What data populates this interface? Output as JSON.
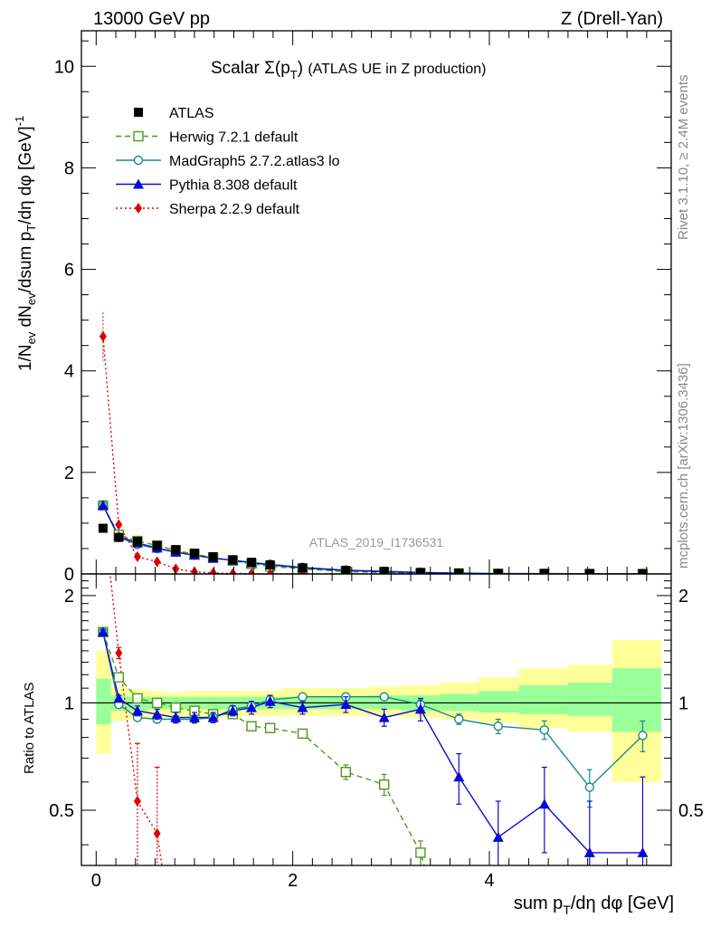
{
  "header": {
    "energy": "13000 GeV pp",
    "process": "Z (Drell-Yan)"
  },
  "side_text": {
    "rivet": "Rivet 3.1.10, ≥ 2.4M events",
    "mcplots": "mcplots.cern.ch [arXiv:1306.3436]"
  },
  "chart_data": [
    {
      "type": "line",
      "panel": "main",
      "title": "Scalar Σ(p_T) (ATLAS UE in Z production)",
      "watermark": "ATLAS_2019_I1736531",
      "ylabel": "1/N_ev dN_ev/dsum p_T/dη dφ [GeV]^-1",
      "xlabel": "sum p_T/dη dφ [GeV]",
      "xlim": [
        -0.15,
        5.85
      ],
      "ylim": [
        0,
        10.7
      ],
      "x_ticks": [
        "0",
        "2",
        "4"
      ],
      "y_ticks": [
        "0",
        "2",
        "4",
        "6",
        "8",
        "10"
      ],
      "legend_position": "top-left",
      "x": [
        0.07,
        0.23,
        0.42,
        0.62,
        0.81,
        1.0,
        1.19,
        1.39,
        1.58,
        1.77,
        2.1,
        2.54,
        2.93,
        3.3,
        3.69,
        4.09,
        4.56,
        5.02,
        5.56
      ],
      "series": [
        {
          "name": "ATLAS",
          "color": "#000000",
          "marker": "square",
          "values": [
            0.9,
            0.72,
            0.64,
            0.56,
            0.48,
            0.41,
            0.34,
            0.28,
            0.23,
            0.18,
            0.12,
            0.07,
            0.05,
            0.03,
            0.02,
            0.01,
            0.008,
            0.005,
            0.003
          ]
        },
        {
          "name": "Herwig 7.2.1 default",
          "color": "#4a9a1a",
          "marker": "open-square",
          "dash": "6,4",
          "values": [
            1.35,
            0.77,
            0.65,
            0.56,
            0.46,
            0.39,
            0.32,
            0.26,
            0.2,
            0.15,
            0.1,
            0.045,
            0.03,
            0.012,
            0.006,
            0.003,
            0.002,
            0.001,
            0.001
          ]
        },
        {
          "name": "MadGraph5 2.7.2.atlas3 lo",
          "color": "#1a8a8a",
          "marker": "open-circle",
          "dash": "",
          "values": [
            1.35,
            0.72,
            0.58,
            0.5,
            0.43,
            0.37,
            0.31,
            0.27,
            0.23,
            0.19,
            0.13,
            0.075,
            0.053,
            0.03,
            0.018,
            0.009,
            0.007,
            0.003,
            0.002
          ]
        },
        {
          "name": "Pythia 8.308 default",
          "color": "#0a0ad6",
          "marker": "triangle",
          "dash": "",
          "values": [
            1.35,
            0.74,
            0.61,
            0.51,
            0.43,
            0.37,
            0.31,
            0.27,
            0.22,
            0.18,
            0.12,
            0.07,
            0.045,
            0.029,
            0.012,
            0.004,
            0.004,
            0.002,
            0.001
          ]
        },
        {
          "name": "Sherpa 2.2.9 default",
          "color": "#e00000",
          "marker": "diamond",
          "dash": "2,3",
          "values": [
            4.68,
            0.97,
            0.34,
            0.24,
            0.1,
            0.04,
            0.02,
            0.01,
            0.005,
            0.003,
            0.002,
            0.001,
            0.001,
            0.001,
            0.0,
            0.0,
            0.0,
            0.0,
            0.0
          ]
        }
      ]
    },
    {
      "type": "line",
      "panel": "ratio",
      "ylabel": "Ratio to ATLAS",
      "xlabel": "sum p_T/dη dφ [GeV]",
      "xlim": [
        -0.15,
        5.85
      ],
      "ylim": [
        0.35,
        2.3
      ],
      "x_ticks": [
        "0",
        "2",
        "4"
      ],
      "y_ticks": [
        "0.5",
        "1",
        "2"
      ],
      "bands": {
        "x_edges": [
          0.0,
          0.15,
          0.32,
          0.52,
          0.72,
          0.9,
          1.1,
          1.3,
          1.48,
          1.68,
          1.88,
          2.32,
          2.75,
          3.1,
          3.5,
          3.89,
          4.3,
          4.8,
          5.25,
          5.75
        ],
        "yellow_lo": [
          0.72,
          0.89,
          0.9,
          0.91,
          0.91,
          0.91,
          0.91,
          0.91,
          0.92,
          0.92,
          0.92,
          0.92,
          0.92,
          0.91,
          0.9,
          0.88,
          0.85,
          0.83,
          0.6
        ],
        "yellow_hi": [
          1.4,
          1.11,
          1.09,
          1.08,
          1.07,
          1.08,
          1.08,
          1.08,
          1.08,
          1.08,
          1.1,
          1.1,
          1.11,
          1.12,
          1.14,
          1.18,
          1.25,
          1.28,
          1.5
        ],
        "green_lo": [
          0.87,
          0.95,
          0.95,
          0.96,
          0.96,
          0.96,
          0.96,
          0.96,
          0.96,
          0.96,
          0.96,
          0.96,
          0.96,
          0.95,
          0.95,
          0.94,
          0.93,
          0.92,
          0.83
        ],
        "green_hi": [
          1.17,
          1.05,
          1.04,
          1.04,
          1.04,
          1.04,
          1.04,
          1.04,
          1.04,
          1.04,
          1.04,
          1.04,
          1.05,
          1.05,
          1.06,
          1.08,
          1.12,
          1.14,
          1.25
        ]
      },
      "x": [
        0.07,
        0.23,
        0.42,
        0.62,
        0.81,
        1.0,
        1.19,
        1.39,
        1.58,
        1.77,
        2.1,
        2.54,
        2.93,
        3.3,
        3.69,
        4.09,
        4.56,
        5.02,
        5.56
      ],
      "series": [
        {
          "name": "Herwig 7.2.1 default",
          "color": "#4a9a1a",
          "marker": "open-square",
          "dash": "6,4",
          "values": [
            1.58,
            1.18,
            1.03,
            1.0,
            0.97,
            0.95,
            0.93,
            0.93,
            0.86,
            0.85,
            0.82,
            0.64,
            0.59,
            0.38,
            null,
            null,
            null,
            null,
            null
          ],
          "errors": [
            0.02,
            0.02,
            0.02,
            0.02,
            0.02,
            0.02,
            0.02,
            0.02,
            0.02,
            0.02,
            0.02,
            0.03,
            0.04,
            0.03,
            null,
            null,
            null,
            null,
            null
          ]
        },
        {
          "name": "MadGraph5 2.7.2.atlas3 lo",
          "color": "#1a8a8a",
          "marker": "open-circle",
          "dash": "",
          "values": [
            1.58,
            0.99,
            0.91,
            0.9,
            0.9,
            0.9,
            0.91,
            0.96,
            0.98,
            1.02,
            1.04,
            1.04,
            1.04,
            0.99,
            0.9,
            0.86,
            0.84,
            0.58,
            0.81
          ],
          "errors": [
            0.02,
            0.02,
            0.02,
            0.02,
            0.02,
            0.02,
            0.02,
            0.02,
            0.02,
            0.02,
            0.02,
            0.02,
            0.02,
            0.03,
            0.03,
            0.04,
            0.05,
            0.07,
            0.08
          ]
        },
        {
          "name": "Pythia 8.308 default",
          "color": "#0a0ad6",
          "marker": "triangle",
          "dash": "",
          "values": [
            1.58,
            1.03,
            0.95,
            0.93,
            0.91,
            0.91,
            0.91,
            0.95,
            0.97,
            1.01,
            0.97,
            0.99,
            0.91,
            0.96,
            0.62,
            0.42,
            0.52,
            0.38,
            0.38
          ],
          "errors": [
            0.02,
            0.02,
            0.03,
            0.03,
            0.03,
            0.03,
            0.03,
            0.03,
            0.04,
            0.04,
            0.04,
            0.05,
            0.05,
            0.07,
            0.1,
            0.11,
            0.14,
            0.15,
            0.24
          ]
        },
        {
          "name": "Sherpa 2.2.9 default",
          "color": "#e00000",
          "marker": "diamond",
          "dash": "2,3",
          "values": [
            3.5,
            1.38,
            0.53,
            0.43,
            null,
            null,
            null,
            null,
            null,
            null,
            null,
            null,
            null,
            null,
            null,
            null,
            null,
            null,
            null
          ],
          "errors": [
            0.3,
            0.05,
            0.24,
            0.23,
            null,
            null,
            null,
            null,
            null,
            null,
            null,
            null,
            null,
            null,
            null,
            null,
            null,
            null,
            null
          ]
        }
      ]
    }
  ]
}
